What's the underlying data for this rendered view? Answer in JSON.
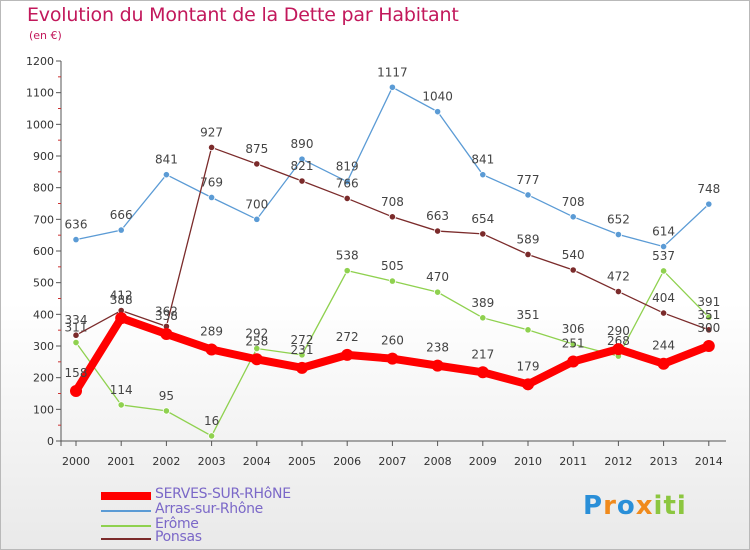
{
  "title": "Evolution du Montant de la Dette par Habitant",
  "subtitle": "(en €)",
  "logo_text": "Proxiti",
  "chart_data": {
    "type": "line",
    "categories": [
      "2000",
      "2001",
      "2002",
      "2003",
      "2004",
      "2005",
      "2006",
      "2007",
      "2008",
      "2009",
      "2010",
      "2011",
      "2012",
      "2013",
      "2014"
    ],
    "ylim": [
      0,
      1200
    ],
    "yticks": [
      0,
      100,
      200,
      300,
      400,
      500,
      600,
      700,
      800,
      900,
      1000,
      1100,
      1200
    ],
    "grid": false,
    "legend_position": "bottom-left",
    "series": [
      {
        "name": "SERVES-SUR-RHôNE",
        "color": "#ff0000",
        "values": [
          158,
          388,
          338,
          289,
          258,
          231,
          272,
          260,
          238,
          217,
          179,
          251,
          290,
          244,
          300
        ]
      },
      {
        "name": "Arras-sur-Rhône",
        "color": "#5b9bd5",
        "values": [
          636,
          666,
          841,
          769,
          700,
          890,
          819,
          1117,
          1040,
          841,
          777,
          708,
          652,
          614,
          748
        ]
      },
      {
        "name": "Erôme",
        "color": "#8fd14f",
        "values": [
          311,
          114,
          95,
          16,
          292,
          272,
          538,
          505,
          470,
          389,
          351,
          306,
          268,
          537,
          391
        ]
      },
      {
        "name": "Ponsas",
        "color": "#7b2b2b",
        "values": [
          334,
          412,
          362,
          927,
          875,
          821,
          766,
          708,
          663,
          654,
          589,
          540,
          472,
          404,
          351
        ]
      }
    ]
  }
}
